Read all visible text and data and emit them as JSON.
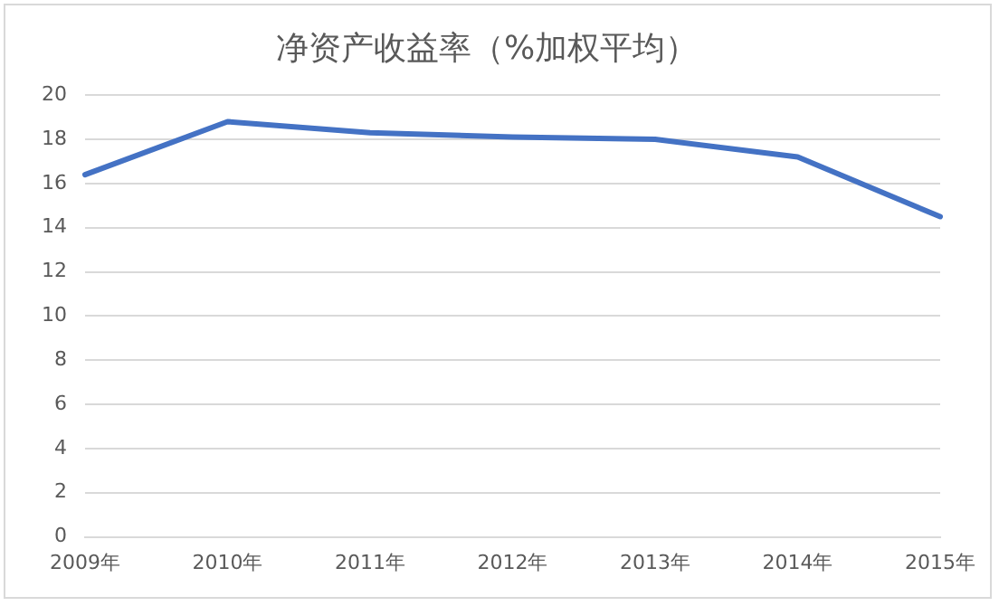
{
  "chart_data": {
    "type": "line",
    "title": "净资产收益率（%加权平均）",
    "categories": [
      "2009年",
      "2010年",
      "2011年",
      "2012年",
      "2013年",
      "2014年",
      "2015年"
    ],
    "series": [
      {
        "color": "#4472c4",
        "values": [
          16.4,
          18.8,
          18.3,
          18.1,
          18.0,
          17.2,
          14.5
        ]
      }
    ],
    "ylim": [
      0,
      20
    ],
    "yticks": [
      0,
      2,
      4,
      6,
      8,
      10,
      12,
      14,
      16,
      18,
      20
    ],
    "grid": "y",
    "legend": false,
    "marker": "none",
    "line_style": "solid"
  }
}
